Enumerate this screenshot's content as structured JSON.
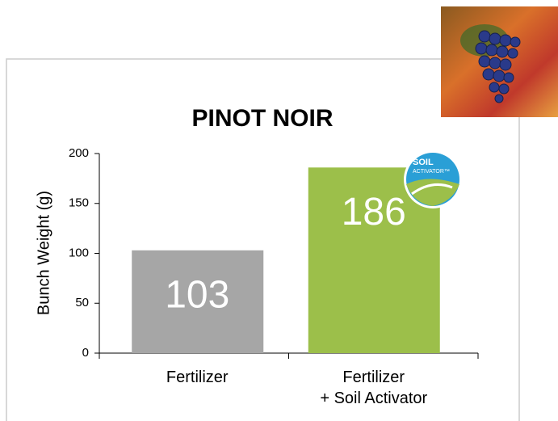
{
  "chart_data": {
    "type": "bar",
    "title": "PINOT NOIR",
    "y_label": "Bunch Weight (g)",
    "categories": [
      "Fertilizer",
      "Fertilizer\n+ Soil Activator"
    ],
    "values": [
      103,
      186
    ],
    "colors": [
      "#a6a6a6",
      "#9cbf4a"
    ],
    "ylim": [
      0,
      200
    ],
    "yticks": [
      0,
      50,
      100,
      150,
      200
    ],
    "grid": false,
    "badge": [
      "SOIL",
      "ACTIVATOR™"
    ]
  }
}
